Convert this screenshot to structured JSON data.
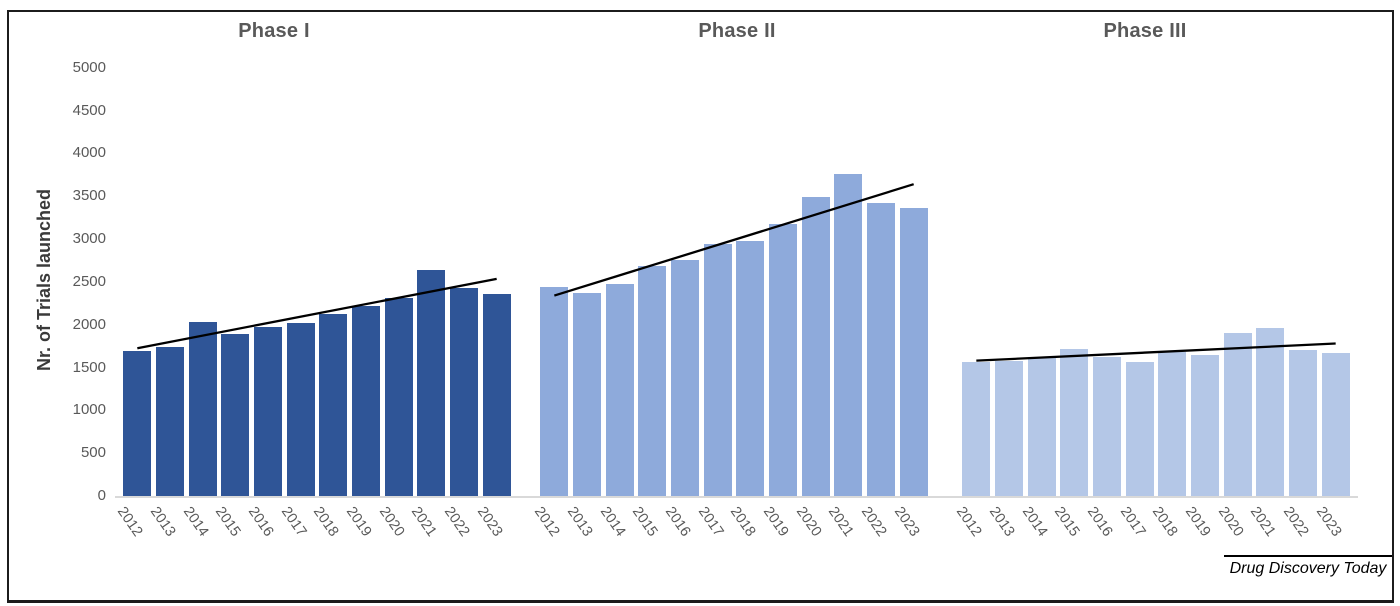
{
  "chart_data": {
    "type": "bar",
    "title": "",
    "ylabel": "Nr. of Trials launched",
    "xlabel": "",
    "ylim": [
      0,
      5000
    ],
    "yticks": [
      0,
      500,
      1000,
      1500,
      2000,
      2500,
      3000,
      3500,
      4000,
      4500,
      5000
    ],
    "grid": false,
    "legend": "none",
    "categories": [
      "2012",
      "2013",
      "2014",
      "2015",
      "2016",
      "2017",
      "2018",
      "2019",
      "2020",
      "2021",
      "2022",
      "2023"
    ],
    "panels": [
      {
        "title": "Phase I",
        "bar_color": "#2F5597",
        "values": [
          1690,
          1740,
          2030,
          1890,
          1970,
          2020,
          2130,
          2220,
          2310,
          2640,
          2430,
          2360
        ],
        "trendline": {
          "start": 1725,
          "end": 2535,
          "color": "#000000"
        }
      },
      {
        "title": "Phase II",
        "bar_color": "#8EAADB",
        "values": [
          2440,
          2370,
          2470,
          2690,
          2760,
          2940,
          2980,
          3180,
          3490,
          3760,
          3420,
          3360
        ],
        "trendline": {
          "start": 2340,
          "end": 3640,
          "color": "#000000"
        }
      },
      {
        "title": "Phase III",
        "bar_color": "#B4C7E7",
        "values": [
          1570,
          1580,
          1610,
          1720,
          1620,
          1570,
          1680,
          1650,
          1900,
          1960,
          1700,
          1670
        ],
        "trendline": {
          "start": 1580,
          "end": 1780,
          "color": "#000000"
        }
      }
    ],
    "axis_text_color": "#595959",
    "baseline_color": "#d9d9d9",
    "source_label": "Drug Discovery Today"
  }
}
